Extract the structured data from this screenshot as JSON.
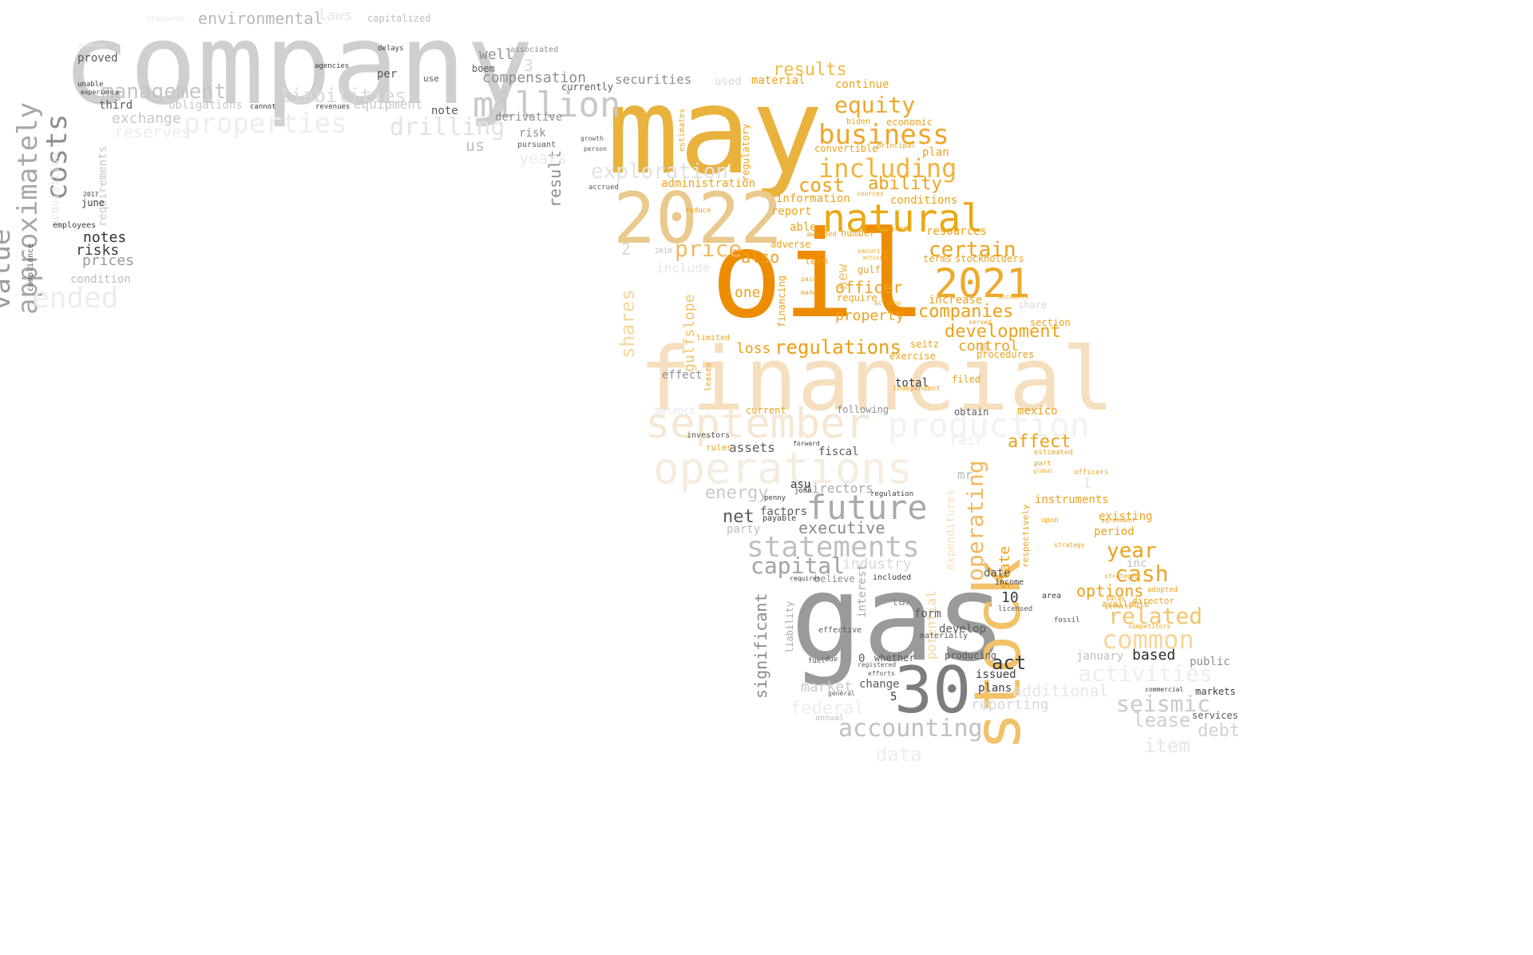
{
  "words": [
    {
      "text": "company",
      "color": "#cfcfcf"
    },
    {
      "text": "may",
      "color": "#e8b23c"
    },
    {
      "text": "oil",
      "color": "#ee8c00"
    },
    {
      "text": "gas",
      "color": "#9a9a9a"
    },
    {
      "text": "financial",
      "color": "#f6dfbf"
    },
    {
      "text": "2022",
      "color": "#e9c98d"
    },
    {
      "text": "stock",
      "color": "#f2c26a"
    },
    {
      "text": "30",
      "color": "#7d7d7d"
    },
    {
      "text": "natural",
      "color": "#eca814"
    },
    {
      "text": "2021",
      "color": "#eea92b"
    },
    {
      "text": "september",
      "color": "#f6e7d2"
    },
    {
      "text": "operations",
      "color": "#f6ecdf"
    },
    {
      "text": "production",
      "color": "#f2f2f2"
    },
    {
      "text": "million",
      "color": "#c8c8c8"
    },
    {
      "text": "future",
      "color": "#a9a9a9"
    },
    {
      "text": "statements",
      "color": "#bfbfbf"
    },
    {
      "text": "business",
      "color": "#eea62a"
    },
    {
      "text": "including",
      "color": "#f0b43a"
    },
    {
      "text": "costs",
      "color": "#8f8f8f"
    },
    {
      "text": "approximately",
      "color": "#a7a7a7"
    },
    {
      "text": "value",
      "color": "#9d9d9d"
    },
    {
      "text": "properties",
      "color": "#ededed"
    },
    {
      "text": "management",
      "color": "#c5c5c5"
    },
    {
      "text": "liabilities",
      "color": "#dadada"
    },
    {
      "text": "drilling",
      "color": "#e3e3e3"
    },
    {
      "text": "exploration",
      "color": "#e2e2e2"
    },
    {
      "text": "equity",
      "color": "#eea62a"
    },
    {
      "text": "price",
      "color": "#f2b85f"
    },
    {
      "text": "certain",
      "color": "#eca21b"
    },
    {
      "text": "regulations",
      "color": "#ec9f16"
    },
    {
      "text": "development",
      "color": "#eca21b"
    },
    {
      "text": "companies",
      "color": "#ec9f16"
    },
    {
      "text": "capital",
      "color": "#a2a2a2"
    },
    {
      "text": "accounting",
      "color": "#c0c0c0"
    },
    {
      "text": "seismic",
      "color": "#c9c9c9"
    },
    {
      "text": "common",
      "color": "#f6d69a"
    },
    {
      "text": "related",
      "color": "#f4c46a"
    },
    {
      "text": "cash",
      "color": "#eea62a"
    },
    {
      "text": "year",
      "color": "#eca21b"
    },
    {
      "text": "operating",
      "color": "#f2b85f"
    },
    {
      "text": "affect",
      "color": "#eca21b"
    },
    {
      "text": "cost",
      "color": "#eca21b"
    },
    {
      "text": "ability",
      "color": "#eca21b"
    },
    {
      "text": "results",
      "color": "#f0ba48"
    },
    {
      "text": "ended",
      "color": "#ececec"
    },
    {
      "text": "notes",
      "color": "#303030"
    },
    {
      "text": "risks",
      "color": "#3c3c3c"
    },
    {
      "text": "prices",
      "color": "#9a9a9a"
    },
    {
      "text": "environmental",
      "color": "#b8b8b8"
    },
    {
      "text": "shares",
      "color": "#f6d69a"
    },
    {
      "text": "act",
      "color": "#3c3c3c"
    },
    {
      "text": "net",
      "color": "#5a5a5a"
    },
    {
      "text": "energy",
      "color": "#c9c9c9"
    },
    {
      "text": "executive",
      "color": "#8a8a8a"
    },
    {
      "text": "significant",
      "color": "#8a8a8a"
    },
    {
      "text": "options",
      "color": "#eca21b"
    },
    {
      "text": "based",
      "color": "#2a2a2a"
    },
    {
      "text": "lease",
      "color": "#cfcfcf"
    },
    {
      "text": "debt",
      "color": "#d2d2d2"
    },
    {
      "text": "item",
      "color": "#e6e6e6"
    },
    {
      "text": "data",
      "color": "#ededed"
    },
    {
      "text": "also",
      "color": "#eca21b"
    },
    {
      "text": "officer",
      "color": "#eca21b"
    },
    {
      "text": "property",
      "color": "#eca21b"
    },
    {
      "text": "loss",
      "color": "#eca21b"
    },
    {
      "text": "control",
      "color": "#eca21b"
    },
    {
      "text": "equipment",
      "color": "#c8c8c8"
    },
    {
      "text": "exchange",
      "color": "#c8c8c8"
    },
    {
      "text": "reserves",
      "color": "#ededed"
    },
    {
      "text": "compensation",
      "color": "#8f8f8f"
    },
    {
      "text": "well",
      "color": "#8f8f8f"
    },
    {
      "text": "securities",
      "color": "#8f8f8f"
    },
    {
      "text": "result",
      "color": "#8f8f8f"
    },
    {
      "text": "include",
      "color": "#e6e6e6"
    },
    {
      "text": "fair",
      "color": "#ededed"
    },
    {
      "text": "directors",
      "color": "#a8a8a8"
    },
    {
      "text": "industry",
      "color": "#d8d8d8"
    },
    {
      "text": "potential",
      "color": "#f6d69a"
    },
    {
      "text": "expenditures",
      "color": "#f6e0bc"
    },
    {
      "text": "reporting",
      "color": "#d8d8d8"
    },
    {
      "text": "market",
      "color": "#c9c9c9"
    },
    {
      "text": "additional",
      "color": "#e6e6e6"
    },
    {
      "text": "activities",
      "color": "#ededed"
    },
    {
      "text": "federal",
      "color": "#ededed"
    },
    {
      "text": "assets",
      "color": "#5a5a5a"
    },
    {
      "text": "fiscal",
      "color": "#5a5a5a"
    },
    {
      "text": "one",
      "color": "#eca21b"
    },
    {
      "text": "new",
      "color": "#f2c26a"
    },
    {
      "text": "us",
      "color": "#bdbdbd"
    },
    {
      "text": "years",
      "color": "#ededed"
    },
    {
      "text": "third",
      "color": "#5a5a5a"
    },
    {
      "text": "proved",
      "color": "#5a5a5a"
    },
    {
      "text": "laws",
      "color": "#e6e6e6"
    },
    {
      "text": "obligations",
      "color": "#c8c8c8"
    },
    {
      "text": "requirements",
      "color": "#c8c8c8"
    },
    {
      "text": "note",
      "color": "#5a5a5a"
    },
    {
      "text": "per",
      "color": "#5a5a5a"
    },
    {
      "text": "condition",
      "color": "#bdbdbd"
    },
    {
      "text": "june",
      "color": "#3c3c3c"
    },
    {
      "text": "acquisition",
      "color": "#e6e6e6"
    },
    {
      "text": "instruments",
      "color": "#eca21b"
    },
    {
      "text": "period",
      "color": "#eca21b"
    },
    {
      "text": "existing",
      "color": "#eca21b"
    },
    {
      "text": "issued",
      "color": "#3c3c3c"
    },
    {
      "text": "change",
      "color": "#5a5a5a"
    },
    {
      "text": "plans",
      "color": "#3c3c3c"
    },
    {
      "text": "develop",
      "color": "#5a5a5a"
    },
    {
      "text": "form",
      "color": "#5a5a5a"
    },
    {
      "text": "tax",
      "color": "#8f8f8f"
    },
    {
      "text": "january",
      "color": "#bdbdbd"
    },
    {
      "text": "public",
      "color": "#8f8f8f"
    },
    {
      "text": "services",
      "color": "#5a5a5a"
    },
    {
      "text": "markets",
      "color": "#3c3c3c"
    },
    {
      "text": "interest",
      "color": "#a8a8a8"
    },
    {
      "text": "liability",
      "color": "#a8a8a8"
    },
    {
      "text": "mexico",
      "color": "#eca21b"
    },
    {
      "text": "gulf",
      "color": "#eca21b"
    },
    {
      "text": "gulfslope",
      "color": "#f2c26a"
    },
    {
      "text": "administration",
      "color": "#eca21b"
    },
    {
      "text": "information",
      "color": "#eca21b"
    },
    {
      "text": "report",
      "color": "#eca21b"
    },
    {
      "text": "able",
      "color": "#eca21b"
    },
    {
      "text": "resources",
      "color": "#eca21b"
    },
    {
      "text": "conditions",
      "color": "#eca21b"
    },
    {
      "text": "plan",
      "color": "#eca21b"
    },
    {
      "text": "material",
      "color": "#eca21b"
    },
    {
      "text": "continue",
      "color": "#eca21b"
    },
    {
      "text": "convertible",
      "color": "#eca21b"
    },
    {
      "text": "economic",
      "color": "#eca21b"
    },
    {
      "text": "increase",
      "color": "#eca21b"
    },
    {
      "text": "terms",
      "color": "#eca21b"
    },
    {
      "text": "stockholders",
      "color": "#eca21b"
    },
    {
      "text": "total",
      "color": "#3c3c3c"
    },
    {
      "text": "effect",
      "color": "#8f8f8f"
    },
    {
      "text": "balance",
      "color": "#e6e6e6"
    },
    {
      "text": "current",
      "color": "#eca21b"
    },
    {
      "text": "rules",
      "color": "#eca21b"
    },
    {
      "text": "factors",
      "color": "#5a5a5a"
    },
    {
      "text": "party",
      "color": "#bdbdbd"
    },
    {
      "text": "date",
      "color": "#5a5a5a"
    },
    {
      "text": "state",
      "color": "#eca21b"
    },
    {
      "text": "used",
      "color": "#d8d8d8"
    },
    {
      "text": "currently",
      "color": "#5a5a5a"
    },
    {
      "text": "derivative",
      "color": "#8f8f8f"
    },
    {
      "text": "risk",
      "color": "#8f8f8f"
    },
    {
      "text": "boem",
      "color": "#5a5a5a"
    },
    {
      "text": "capitalized",
      "color": "#bdbdbd"
    },
    {
      "text": "regulatory",
      "color": "#eca21b"
    },
    {
      "text": "estimates",
      "color": "#eca21b"
    },
    {
      "text": "number",
      "color": "#eca21b"
    },
    {
      "text": "require",
      "color": "#eca21b"
    },
    {
      "text": "financing",
      "color": "#eca21b"
    },
    {
      "text": "term",
      "color": "#eca21b"
    },
    {
      "text": "adverse",
      "color": "#eca21b"
    },
    {
      "text": "2",
      "color": "#d8d8d8"
    },
    {
      "text": "3",
      "color": "#d8d8d8"
    },
    {
      "text": "10",
      "color": "#3c3c3c"
    },
    {
      "text": "0",
      "color": "#5a5a5a"
    },
    {
      "text": "5",
      "color": "#3c3c3c"
    },
    {
      "text": "1",
      "color": "#e6e6e6"
    },
    {
      "text": "whether",
      "color": "#5a5a5a"
    },
    {
      "text": "producing",
      "color": "#5a5a5a"
    },
    {
      "text": "asu",
      "color": "#3c3c3c"
    },
    {
      "text": "filed",
      "color": "#eca21b"
    },
    {
      "text": "obtain",
      "color": "#5a5a5a"
    },
    {
      "text": "following",
      "color": "#8f8f8f"
    },
    {
      "text": "exercise",
      "color": "#eca21b"
    },
    {
      "text": "seitz",
      "color": "#eca21b"
    },
    {
      "text": "procedures",
      "color": "#eca21b"
    },
    {
      "text": "section",
      "color": "#eca21b"
    },
    {
      "text": "share",
      "color": "#d8d8d8"
    },
    {
      "text": "mr",
      "color": "#bdbdbd"
    },
    {
      "text": "effective",
      "color": "#5a5a5a"
    },
    {
      "text": "materially",
      "color": "#5a5a5a"
    },
    {
      "text": "area",
      "color": "#3c3c3c"
    },
    {
      "text": "income",
      "color": "#3c3c3c"
    },
    {
      "text": "director",
      "color": "#eca21b"
    },
    {
      "text": "available",
      "color": "#eca21b"
    },
    {
      "text": "fuel",
      "color": "#5a5a5a"
    },
    {
      "text": "due",
      "color": "#5a5a5a"
    },
    {
      "text": "penny",
      "color": "#3c3c3c"
    },
    {
      "text": "payable",
      "color": "#3c3c3c"
    },
    {
      "text": "regulation",
      "color": "#3c3c3c"
    },
    {
      "text": "investors",
      "color": "#5a5a5a"
    },
    {
      "text": "limited",
      "color": "#eca21b"
    },
    {
      "text": "leases",
      "color": "#eca21b"
    },
    {
      "text": "employees",
      "color": "#3c3c3c"
    },
    {
      "text": "compliance",
      "color": "#5a5a5a"
    },
    {
      "text": "agencies",
      "color": "#3c3c3c"
    },
    {
      "text": "delays",
      "color": "#3c3c3c"
    },
    {
      "text": "associated",
      "color": "#8f8f8f"
    },
    {
      "text": "use",
      "color": "#5a5a5a"
    },
    {
      "text": "pursuant",
      "color": "#5a5a5a"
    },
    {
      "text": "biden",
      "color": "#eca21b"
    },
    {
      "text": "sources",
      "color": "#eca21b"
    },
    {
      "text": "principal",
      "color": "#eca21b"
    },
    {
      "text": "2017",
      "color": "#3c3c3c"
    },
    {
      "text": "2018",
      "color": "#bdbdbd"
    },
    {
      "text": "officers",
      "color": "#eca21b"
    },
    {
      "text": "strategy",
      "color": "#eca21b"
    },
    {
      "text": "standards",
      "color": "#e6e6e6"
    },
    {
      "text": "expense",
      "color": "#e6e6e6"
    },
    {
      "text": "unable",
      "color": "#3c3c3c"
    },
    {
      "text": "experience",
      "color": "#3c3c3c"
    },
    {
      "text": "cannot",
      "color": "#3c3c3c"
    },
    {
      "text": "revenues",
      "color": "#3c3c3c"
    },
    {
      "text": "growth",
      "color": "#5a5a5a"
    },
    {
      "text": "person",
      "color": "#5a5a5a"
    },
    {
      "text": "accrued",
      "color": "#5a5a5a"
    },
    {
      "text": "reduce",
      "color": "#eca21b"
    },
    {
      "text": "awarded",
      "color": "#eca21b"
    },
    {
      "text": "paid",
      "color": "#eca21b"
    },
    {
      "text": "made",
      "color": "#eca21b"
    },
    {
      "text": "actions",
      "color": "#eca21b"
    },
    {
      "text": "reports",
      "color": "#eca21b"
    },
    {
      "text": "security",
      "color": "#eca21b"
    },
    {
      "text": "activity",
      "color": "#eca21b"
    },
    {
      "text": "served",
      "color": "#eca21b"
    },
    {
      "text": "accounts",
      "color": "#eca21b"
    },
    {
      "text": "independent",
      "color": "#eca21b"
    },
    {
      "text": "fossil",
      "color": "#5a5a5a"
    },
    {
      "text": "licensed",
      "color": "#5a5a5a"
    },
    {
      "text": "registered",
      "color": "#5a5a5a"
    },
    {
      "text": "efforts",
      "color": "#5a5a5a"
    },
    {
      "text": "general",
      "color": "#5a5a5a"
    },
    {
      "text": "annual",
      "color": "#bdbdbd"
    },
    {
      "text": "included",
      "color": "#3c3c3c"
    },
    {
      "text": "believe",
      "color": "#8f8f8f"
    },
    {
      "text": "requires",
      "color": "#3c3c3c"
    },
    {
      "text": "forward",
      "color": "#3c3c3c"
    },
    {
      "text": "john",
      "color": "#3c3c3c"
    },
    {
      "text": "commercial",
      "color": "#3c3c3c"
    },
    {
      "text": "respectively",
      "color": "#eca21b"
    },
    {
      "text": "estimated",
      "color": "#eca21b"
    },
    {
      "text": "global",
      "color": "#eca21b"
    },
    {
      "text": "part",
      "color": "#eca21b"
    },
    {
      "text": "upon",
      "color": "#eca21b"
    },
    {
      "text": "agreement",
      "color": "#eca21b"
    },
    {
      "text": "permits",
      "color": "#eca21b"
    },
    {
      "text": "sales",
      "color": "#eca21b"
    },
    {
      "text": "adopted",
      "color": "#eca21b"
    },
    {
      "text": "competitors",
      "color": "#eca21b"
    },
    {
      "text": "strategic",
      "color": "#eca21b"
    },
    {
      "text": "inc",
      "color": "#bdbdbd"
    }
  ]
}
